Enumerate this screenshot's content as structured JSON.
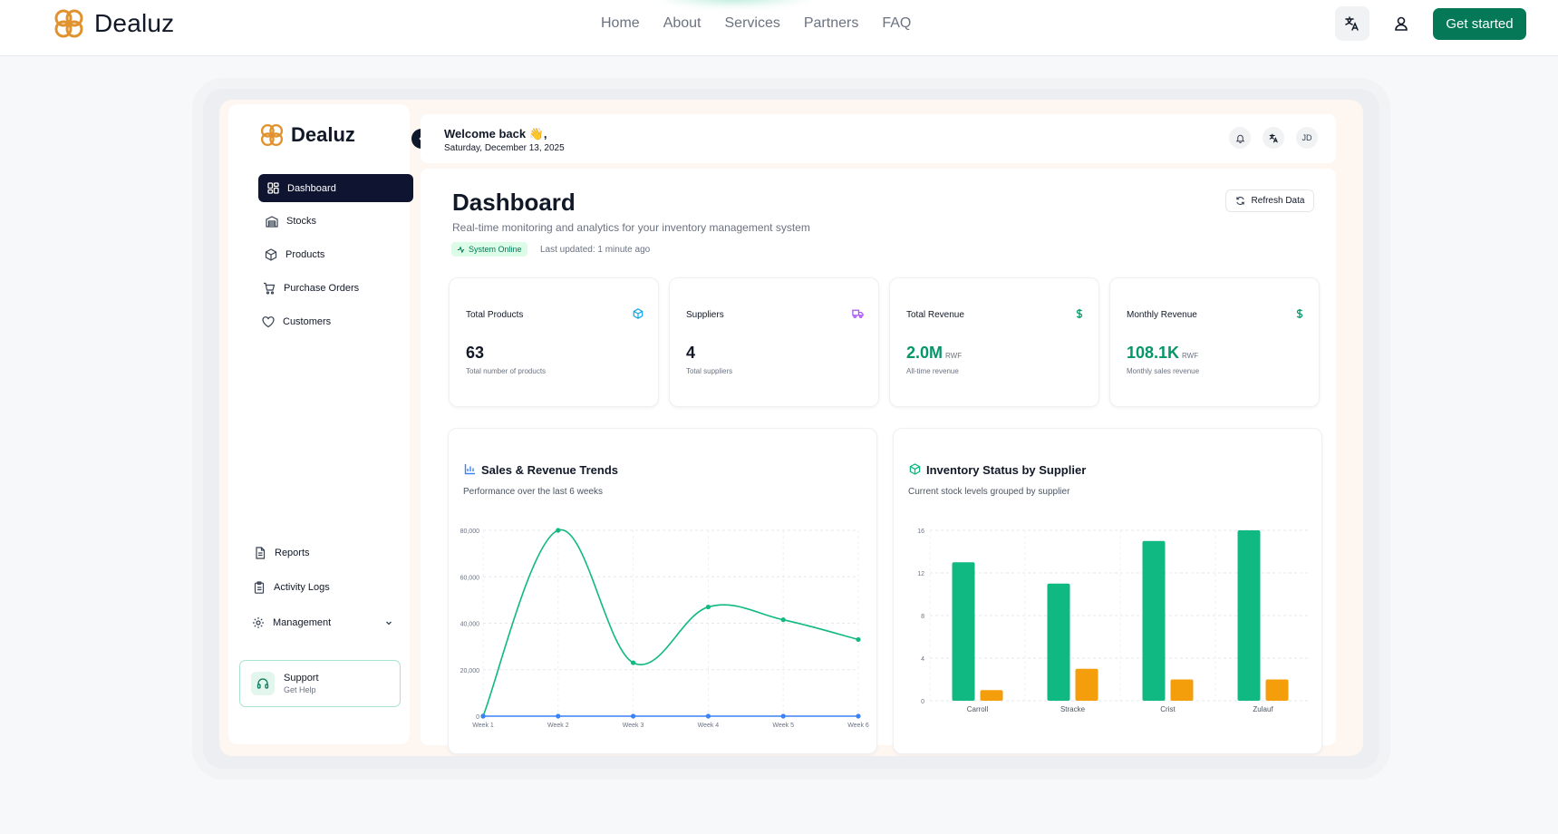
{
  "site": {
    "brand": "Dealuz",
    "nav": [
      "Home",
      "About",
      "Services",
      "Partners",
      "FAQ"
    ],
    "cta": "Get started",
    "icons": {
      "language": "translate-icon",
      "account": "user-icon"
    }
  },
  "app": {
    "brand": "Dealuz",
    "sidebar": {
      "items": [
        {
          "label": "Dashboard",
          "icon": "grid-icon",
          "active": true
        },
        {
          "label": "Stocks",
          "icon": "warehouse-icon"
        },
        {
          "label": "Products",
          "icon": "box-icon"
        },
        {
          "label": "Purchase Orders",
          "icon": "cart-icon"
        },
        {
          "label": "Customers",
          "icon": "heart-icon"
        }
      ],
      "bottom_items": [
        {
          "label": "Reports",
          "icon": "file-icon"
        },
        {
          "label": "Activity Logs",
          "icon": "clipboard-icon"
        },
        {
          "label": "Management",
          "icon": "gear-icon"
        }
      ],
      "support": {
        "title": "Support",
        "subtitle": "Get Help"
      }
    },
    "header": {
      "welcome": "Welcome back 👋,",
      "date": "Saturday, December 13, 2025",
      "avatar": "JD"
    },
    "dashboard": {
      "title": "Dashboard",
      "subtitle": "Real-time monitoring and analytics for your inventory management system",
      "status": "System Online",
      "last_updated": "Last updated: 1 minute ago",
      "refresh": "Refresh Data",
      "stats": [
        {
          "label": "Total Products",
          "value": "63",
          "unit": "",
          "desc": "Total number of products",
          "icon": "cube-icon",
          "color": "#0ea5e9"
        },
        {
          "label": "Suppliers",
          "value": "4",
          "unit": "",
          "desc": "Total suppliers",
          "icon": "truck-icon",
          "color": "#a855f7"
        },
        {
          "label": "Total Revenue",
          "value": "2.0M",
          "unit": "RWF",
          "desc": "All-time revenue",
          "icon": "dollar-icon",
          "color": "#059669"
        },
        {
          "label": "Monthly Revenue",
          "value": "108.1K",
          "unit": "RWF",
          "desc": "Monthly sales revenue",
          "icon": "dollar-icon",
          "color": "#059669"
        }
      ]
    },
    "colors": {
      "accent": "#047857",
      "green": "#10b981",
      "orange": "#f59e0b",
      "blue": "#3b82f6",
      "navy": "#0f1530"
    }
  },
  "chart_data": [
    {
      "type": "line",
      "title": "Sales & Revenue Trends",
      "subtitle": "Performance over the last 6 weeks",
      "categories": [
        "Week 1",
        "Week 2",
        "Week 3",
        "Week 4",
        "Week 5",
        "Week 6"
      ],
      "y_tick_labels": [
        "0",
        "20,000",
        "40,000",
        "60,000",
        "80,000"
      ],
      "ylim": [
        0,
        80000
      ],
      "series": [
        {
          "color": "#10b981",
          "values": [
            0,
            80000,
            23000,
            47000,
            41500,
            33000
          ]
        },
        {
          "color": "#3b82f6",
          "values": [
            0,
            0,
            0,
            0,
            0,
            0
          ]
        }
      ],
      "grid": true
    },
    {
      "type": "bar",
      "title": "Inventory Status by Supplier",
      "subtitle": "Current stock levels grouped by supplier",
      "categories": [
        "Carroll",
        "Stracke",
        "Crist",
        "Zulauf"
      ],
      "y_ticks": [
        0,
        4,
        8,
        12,
        16
      ],
      "ylim": [
        0,
        16
      ],
      "series": [
        {
          "color": "#10b981",
          "values": [
            13,
            11,
            15,
            16
          ]
        },
        {
          "color": "#f59e0b",
          "values": [
            1,
            3,
            2,
            2
          ]
        }
      ],
      "grid": true
    }
  ]
}
